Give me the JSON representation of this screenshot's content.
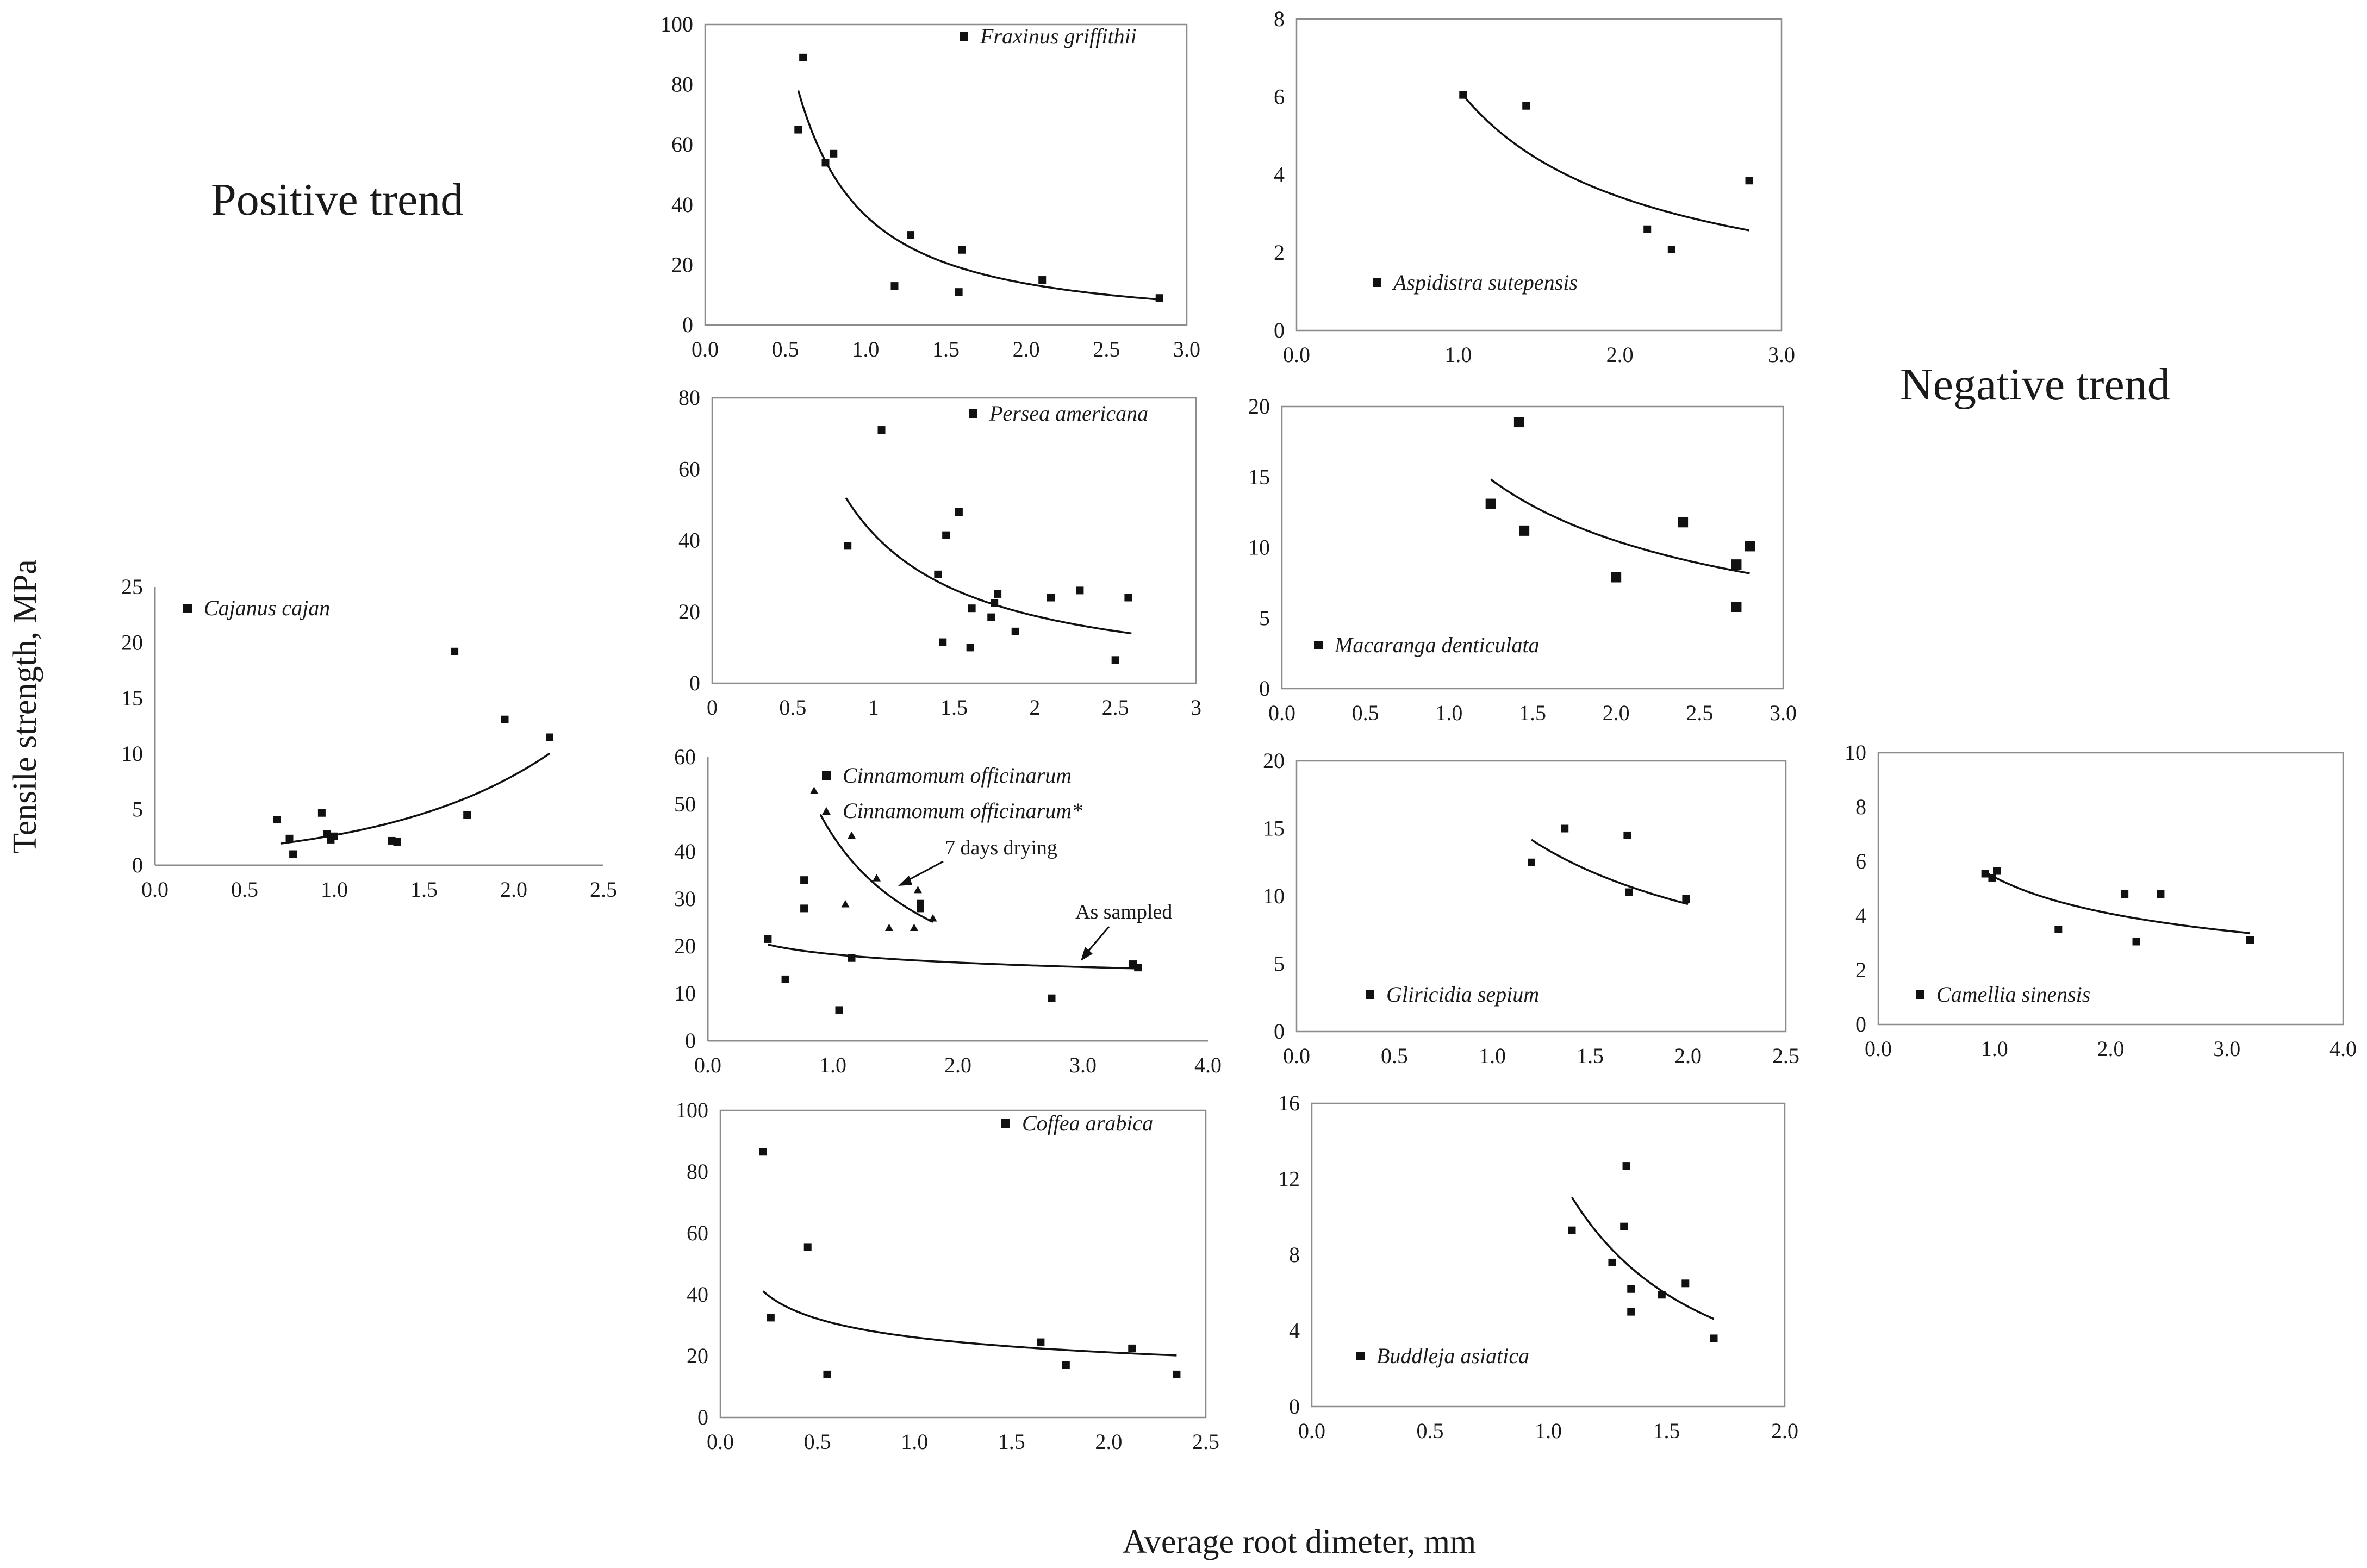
{
  "labels": {
    "positive_trend": "Positive trend",
    "negative_trend": "Negative trend",
    "y_axis": "Tensile strength, MPa",
    "x_axis": "Average root dimeter, mm"
  },
  "colors": {
    "marker": "#111111",
    "frame": "#8c8c8c",
    "text": "#1a1a1a"
  },
  "chart_data": [
    {
      "id": "cajanus",
      "type": "scatter",
      "legend": "Cajanus cajan",
      "xlim": [
        0,
        2.5
      ],
      "ylim": [
        0,
        25
      ],
      "xticks": [
        "0.0",
        "0.5",
        "1.0",
        "1.5",
        "2.0",
        "2.5"
      ],
      "yticks": [
        "0",
        "5",
        "10",
        "15",
        "20",
        "25"
      ],
      "series": [
        {
          "name": "Cajanus cajan",
          "marker": "square",
          "points": [
            [
              0.68,
              4.1
            ],
            [
              0.75,
              2.4
            ],
            [
              0.77,
              1.0
            ],
            [
              0.93,
              4.7
            ],
            [
              0.96,
              2.8
            ],
            [
              0.98,
              2.3
            ],
            [
              1.0,
              2.6
            ],
            [
              1.32,
              2.2
            ],
            [
              1.35,
              2.1
            ],
            [
              1.67,
              19.2
            ],
            [
              1.74,
              4.5
            ],
            [
              1.95,
              13.1
            ],
            [
              2.2,
              11.5
            ]
          ],
          "fit": {
            "model": "exp",
            "a": 0.905,
            "b": 1.094,
            "x_range": [
              0.7,
              2.2
            ]
          }
        }
      ]
    },
    {
      "id": "fraxinus",
      "type": "scatter",
      "legend": "Fraxinus griffithii",
      "xlim": [
        0,
        3
      ],
      "ylim": [
        0,
        100
      ],
      "xticks": [
        "0.0",
        "0.5",
        "1.0",
        "1.5",
        "2.0",
        "2.5",
        "3.0"
      ],
      "yticks": [
        "0",
        "20",
        "40",
        "60",
        "80",
        "100"
      ],
      "series": [
        {
          "name": "Fraxinus griffithii",
          "marker": "square",
          "points": [
            [
              0.58,
              65
            ],
            [
              0.61,
              89
            ],
            [
              0.75,
              54
            ],
            [
              0.8,
              57
            ],
            [
              1.18,
              13
            ],
            [
              1.28,
              30
            ],
            [
              1.58,
              11
            ],
            [
              1.6,
              25
            ],
            [
              2.1,
              15
            ],
            [
              2.83,
              9
            ]
          ],
          "fit": {
            "model": "power",
            "a": 36.4,
            "b": -1.4,
            "x_range": [
              0.58,
              2.85
            ]
          }
        }
      ]
    },
    {
      "id": "aspidistra",
      "type": "scatter",
      "legend": "Aspidistra sutepensis",
      "xlim": [
        0,
        3
      ],
      "ylim": [
        0,
        8
      ],
      "xticks": [
        "0.0",
        "1.0",
        "2.0",
        "3.0"
      ],
      "yticks": [
        "0",
        "2",
        "4",
        "6",
        "8"
      ],
      "series": [
        {
          "name": "Aspidistra sutepensis",
          "marker": "square",
          "points": [
            [
              1.03,
              6.05
            ],
            [
              1.42,
              5.77
            ],
            [
              2.17,
              2.6
            ],
            [
              2.32,
              2.08
            ],
            [
              2.8,
              3.85
            ]
          ],
          "fit": {
            "model": "power",
            "a": 6.2,
            "b": -0.855,
            "x_range": [
              1.03,
              2.8
            ]
          }
        }
      ]
    },
    {
      "id": "persea",
      "type": "scatter",
      "legend": "Persea americana",
      "xlim": [
        0,
        3
      ],
      "ylim": [
        0,
        80
      ],
      "xticks": [
        "0",
        "0.5",
        "1",
        "1.5",
        "2",
        "2.5",
        "3"
      ],
      "yticks": [
        "0",
        "20",
        "40",
        "60",
        "80"
      ],
      "series": [
        {
          "name": "Persea americana",
          "marker": "square",
          "points": [
            [
              0.84,
              38.5
            ],
            [
              1.05,
              71
            ],
            [
              1.4,
              30.5
            ],
            [
              1.43,
              11.5
            ],
            [
              1.45,
              41.5
            ],
            [
              1.53,
              48
            ],
            [
              1.6,
              10
            ],
            [
              1.61,
              21
            ],
            [
              1.73,
              18.5
            ],
            [
              1.75,
              22.5
            ],
            [
              1.77,
              25
            ],
            [
              1.88,
              14.5
            ],
            [
              2.1,
              24
            ],
            [
              2.28,
              26
            ],
            [
              2.5,
              6.5
            ],
            [
              2.58,
              24
            ]
          ],
          "fit": {
            "model": "power",
            "a": 41.9,
            "b": -1.15,
            "x_range": [
              0.83,
              2.6
            ]
          }
        }
      ]
    },
    {
      "id": "macaranga",
      "type": "scatter",
      "legend": "Macaranga denticulata",
      "xlim": [
        0,
        3
      ],
      "ylim": [
        0,
        20
      ],
      "xticks": [
        "0.0",
        "0.5",
        "1.0",
        "1.5",
        "2.0",
        "2.5",
        "3.0"
      ],
      "yticks": [
        "0",
        "5",
        "10",
        "15",
        "20"
      ],
      "series": [
        {
          "name": "Macaranga denticulata",
          "marker": "square",
          "points": [
            [
              1.25,
              13.1
            ],
            [
              1.42,
              18.9
            ],
            [
              1.45,
              11.2
            ],
            [
              2.0,
              7.9
            ],
            [
              2.4,
              11.8
            ],
            [
              2.72,
              8.8
            ],
            [
              2.72,
              5.8
            ],
            [
              2.8,
              10.1
            ]
          ],
          "fit": {
            "model": "power",
            "a": 17.5,
            "b": -0.74,
            "x_range": [
              1.25,
              2.8
            ]
          }
        }
      ]
    },
    {
      "id": "cinnamomum",
      "type": "scatter",
      "legend": "Cinnamomum officinarum",
      "legend2": "Cinnamomum officinarum*",
      "annotations": [
        "7 days drying",
        "As sampled"
      ],
      "xlim": [
        0,
        4
      ],
      "ylim": [
        0,
        60
      ],
      "xticks": [
        "0.0",
        "1.0",
        "2.0",
        "3.0",
        "4.0"
      ],
      "yticks": [
        "0",
        "10",
        "20",
        "30",
        "40",
        "50",
        "60"
      ],
      "series": [
        {
          "name": "Cinnamomum officinarum",
          "marker": "square",
          "points": [
            [
              0.48,
              21.5
            ],
            [
              0.62,
              13
            ],
            [
              0.77,
              34
            ],
            [
              0.77,
              28
            ],
            [
              1.05,
              6.5
            ],
            [
              1.15,
              17.5
            ],
            [
              1.7,
              29
            ],
            [
              1.7,
              28
            ],
            [
              2.75,
              9
            ],
            [
              3.4,
              16.2
            ],
            [
              3.44,
              15.5
            ]
          ],
          "fit": {
            "model": "power",
            "a": 18.3,
            "b": -0.145,
            "x_range": [
              0.48,
              3.45
            ]
          }
        },
        {
          "name": "Cinnamomum officinarum*",
          "marker": "triangle",
          "points": [
            [
              0.85,
              53
            ],
            [
              1.1,
              29
            ],
            [
              1.15,
              43.5
            ],
            [
              1.35,
              34.5
            ],
            [
              1.45,
              24
            ],
            [
              1.65,
              24
            ],
            [
              1.68,
              32
            ],
            [
              1.8,
              26
            ]
          ],
          "fit": {
            "model": "power",
            "a": 43.4,
            "b": -0.93,
            "x_range": [
              0.9,
              1.8
            ]
          }
        }
      ]
    },
    {
      "id": "gliricidia",
      "type": "scatter",
      "legend": "Gliricidia sepium",
      "xlim": [
        0,
        2.5
      ],
      "ylim": [
        0,
        20
      ],
      "xticks": [
        "0.0",
        "0.5",
        "1.0",
        "1.5",
        "2.0",
        "2.5"
      ],
      "yticks": [
        "0",
        "5",
        "10",
        "15",
        "20"
      ],
      "series": [
        {
          "name": "Gliricidia sepium",
          "marker": "square",
          "points": [
            [
              1.2,
              12.5
            ],
            [
              1.37,
              15
            ],
            [
              1.69,
              14.5
            ],
            [
              1.7,
              10.3
            ],
            [
              1.99,
              9.8
            ]
          ],
          "fit": {
            "model": "power",
            "a": 16.4,
            "b": -0.8,
            "x_range": [
              1.2,
              2.0
            ]
          }
        }
      ]
    },
    {
      "id": "camellia",
      "type": "scatter",
      "legend": "Camellia sinensis",
      "xlim": [
        0,
        4
      ],
      "ylim": [
        0,
        10
      ],
      "xticks": [
        "0.0",
        "1.0",
        "2.0",
        "3.0",
        "4.0"
      ],
      "yticks": [
        "0",
        "2",
        "4",
        "6",
        "8",
        "10"
      ],
      "series": [
        {
          "name": "Camellia sinensis",
          "marker": "square",
          "points": [
            [
              0.92,
              5.55
            ],
            [
              0.98,
              5.4
            ],
            [
              1.02,
              5.65
            ],
            [
              1.55,
              3.5
            ],
            [
              2.12,
              4.8
            ],
            [
              2.22,
              3.05
            ],
            [
              2.43,
              4.8
            ],
            [
              3.2,
              3.1
            ]
          ],
          "fit": {
            "model": "power",
            "a": 5.42,
            "b": -0.411,
            "x_range": [
              0.92,
              3.2
            ]
          }
        }
      ]
    },
    {
      "id": "coffea",
      "type": "scatter",
      "legend": "Coffea arabica",
      "xlim": [
        0,
        2.5
      ],
      "ylim": [
        0,
        100
      ],
      "xticks": [
        "0.0",
        "0.5",
        "1.0",
        "1.5",
        "2.0",
        "2.5"
      ],
      "yticks": [
        "0",
        "20",
        "40",
        "60",
        "80",
        "100"
      ],
      "series": [
        {
          "name": "Coffea arabica",
          "marker": "square",
          "points": [
            [
              0.22,
              86.5
            ],
            [
              0.26,
              32.5
            ],
            [
              0.45,
              55.5
            ],
            [
              0.55,
              14
            ],
            [
              1.65,
              24.5
            ],
            [
              1.78,
              17
            ],
            [
              2.12,
              22.5
            ],
            [
              2.35,
              14
            ]
          ],
          "fit": {
            "model": "power",
            "a": 26.1,
            "b": -0.3,
            "x_range": [
              0.22,
              2.35
            ]
          }
        }
      ]
    },
    {
      "id": "buddleja",
      "type": "scatter",
      "legend": "Buddleja asiatica",
      "xlim": [
        0,
        2
      ],
      "ylim": [
        0,
        16
      ],
      "xticks": [
        "0.0",
        "0.5",
        "1.0",
        "1.5",
        "2.0"
      ],
      "yticks": [
        "0",
        "4",
        "8",
        "12",
        "16"
      ],
      "series": [
        {
          "name": "Buddleja asiatica",
          "marker": "square",
          "points": [
            [
              1.1,
              9.3
            ],
            [
              1.27,
              7.6
            ],
            [
              1.32,
              9.5
            ],
            [
              1.33,
              12.7
            ],
            [
              1.35,
              6.2
            ],
            [
              1.35,
              5.0
            ],
            [
              1.48,
              5.9
            ],
            [
              1.58,
              6.5
            ],
            [
              1.7,
              3.6
            ]
          ],
          "fit": {
            "model": "power",
            "a": 13.36,
            "b": -2.0,
            "x_range": [
              1.1,
              1.7
            ]
          }
        }
      ]
    }
  ]
}
